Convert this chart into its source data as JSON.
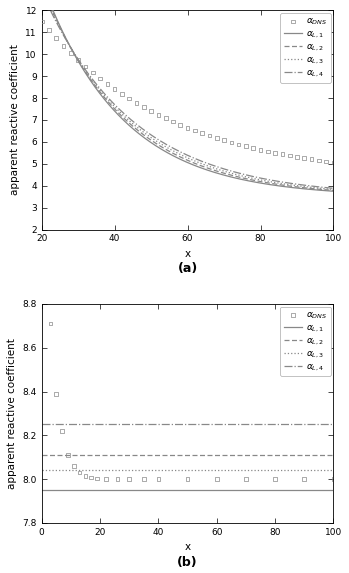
{
  "panel_a": {
    "xlim": [
      20,
      100
    ],
    "ylim": [
      2,
      12
    ],
    "xlabel": "x",
    "ylabel": "apparent reactive coefficient",
    "label_a": "(a)",
    "xticks": [
      20,
      40,
      60,
      80,
      100
    ],
    "yticks": [
      2,
      3,
      4,
      5,
      6,
      7,
      8,
      9,
      10,
      11,
      12
    ],
    "dns_x": [
      20,
      22,
      24,
      26,
      28,
      30,
      32,
      34,
      36,
      38,
      40,
      42,
      44,
      46,
      48,
      50,
      52,
      54,
      56,
      58,
      60,
      62,
      64,
      66,
      68,
      70,
      72,
      74,
      76,
      78,
      80,
      82,
      84,
      86,
      88,
      90,
      92,
      94,
      96,
      98,
      100
    ],
    "dns_A": 7.2,
    "dns_B": 0.028,
    "dns_C": 4.3,
    "L1_A": 9.8,
    "L1_B": 0.046,
    "L1_C": 3.5,
    "L2_A": 9.65,
    "L2_B": 0.044,
    "L2_C": 3.5,
    "L3_A": 9.5,
    "L3_B": 0.042,
    "L3_C": 3.5,
    "L4_A": 9.35,
    "L4_B": 0.04,
    "L4_C": 3.5
  },
  "panel_b": {
    "xlim": [
      0,
      100
    ],
    "ylim": [
      7.8,
      8.8
    ],
    "xlabel": "x",
    "ylabel": "apparent reactive coefficient",
    "label_b": "(b)",
    "xticks": [
      0,
      20,
      40,
      60,
      80,
      100
    ],
    "yticks": [
      7.8,
      8.0,
      8.2,
      8.4,
      8.6,
      8.8
    ],
    "dns_x": [
      3,
      5,
      7,
      9,
      11,
      13,
      15,
      17,
      19,
      22,
      26,
      30,
      35,
      40,
      50,
      60,
      70,
      80,
      90,
      100
    ],
    "dns_y": [
      8.71,
      8.39,
      8.22,
      8.11,
      8.06,
      8.03,
      8.015,
      8.008,
      8.003,
      8.001,
      8.0,
      8.0,
      8.0,
      8.0,
      8.0,
      8.0,
      8.0,
      8.0,
      8.0,
      8.0
    ],
    "L1_val": 7.95,
    "L2_val": 8.11,
    "L3_val": 8.04,
    "L4_val": 8.25
  },
  "color": "#888888",
  "legend_fontsize": 6.5,
  "axis_fontsize": 7.5,
  "tick_fontsize": 6.5,
  "label_fontsize": 9
}
